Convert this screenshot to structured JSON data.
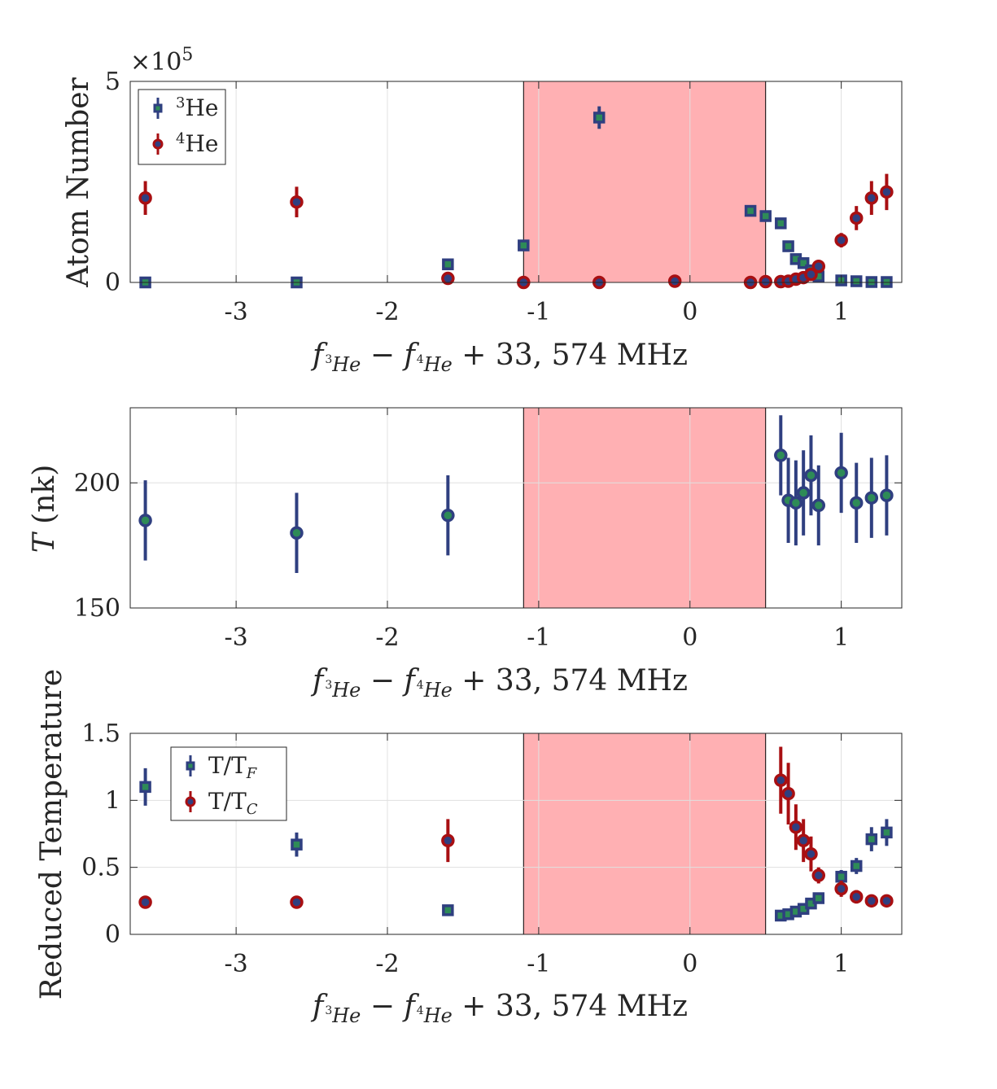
{
  "colors": {
    "he3": "#2f3f80",
    "he4": "#a80f12",
    "marker_center": "#2e8b57",
    "shade": "#ff9a9e",
    "axis": "#262626",
    "grid": "#e0e0e0"
  },
  "xlabel": {
    "f": "f",
    "sub1a": "3",
    "sub1b": "He",
    "minus": "−",
    "sub2a": "4",
    "sub2b": "He",
    "tail": "+ 33, 574 MHz"
  },
  "chart_data": [
    {
      "type": "scatter",
      "ylabel": "Atom Number",
      "y_multiplier": "×10",
      "y_multiplier_exp": "5",
      "xlim": [
        -3.7,
        1.4
      ],
      "ylim": [
        0,
        5
      ],
      "xticks": [
        "-3",
        "-2",
        "-1",
        "0",
        "1"
      ],
      "yticks": [
        "0",
        "5"
      ],
      "grid": true,
      "shaded_region": [
        -1.1,
        0.5
      ],
      "legend": {
        "position": "top-left",
        "entries": [
          {
            "sup": "3",
            "text": "He",
            "marker": "square",
            "color": "he3"
          },
          {
            "sup": "4",
            "text": "He",
            "marker": "circle",
            "color": "he4"
          }
        ]
      },
      "series": [
        {
          "name": "3He",
          "marker": "square",
          "color": "he3",
          "x": [
            -3.6,
            -2.6,
            -1.6,
            -1.1,
            -0.6,
            0.4,
            0.5,
            0.6,
            0.65,
            0.7,
            0.75,
            0.8,
            0.85,
            1.0,
            1.1,
            1.2,
            1.3
          ],
          "y": [
            0.0,
            0.0,
            0.45,
            0.92,
            4.1,
            1.78,
            1.65,
            1.47,
            0.9,
            0.58,
            0.48,
            0.3,
            0.15,
            0.05,
            0.03,
            0.01,
            0.01
          ],
          "err": [
            0,
            0,
            0,
            0,
            0.28,
            0.12,
            0,
            0,
            0,
            0,
            0,
            0,
            0,
            0,
            0,
            0,
            0
          ]
        },
        {
          "name": "4He",
          "marker": "circle",
          "color": "he4",
          "x": [
            -3.6,
            -2.6,
            -1.6,
            -1.1,
            -0.6,
            -0.1,
            0.4,
            0.5,
            0.6,
            0.65,
            0.7,
            0.75,
            0.8,
            0.85,
            1.0,
            1.1,
            1.2,
            1.3
          ],
          "y": [
            2.1,
            2.0,
            0.1,
            0.0,
            0.0,
            0.03,
            0.0,
            0.02,
            0.02,
            0.03,
            0.08,
            0.12,
            0.2,
            0.4,
            1.05,
            1.6,
            2.1,
            2.25
          ],
          "err": [
            0.42,
            0.38,
            0,
            0,
            0,
            0,
            0,
            0,
            0,
            0,
            0,
            0,
            0,
            0,
            0.18,
            0.3,
            0.42,
            0.45
          ]
        }
      ]
    },
    {
      "type": "scatter",
      "ylabel": "T (nk)",
      "xlim": [
        -3.7,
        1.4
      ],
      "ylim": [
        150,
        230
      ],
      "xticks": [
        "-3",
        "-2",
        "-1",
        "0",
        "1"
      ],
      "yticks": [
        "150",
        "200"
      ],
      "grid": true,
      "shaded_region": [
        -1.1,
        0.5
      ],
      "series": [
        {
          "name": "T",
          "marker": "circle",
          "color": "he3",
          "x": [
            -3.6,
            -2.6,
            -1.6,
            0.6,
            0.65,
            0.7,
            0.75,
            0.8,
            0.85,
            1.0,
            1.1,
            1.2,
            1.3
          ],
          "y": [
            185,
            180,
            187,
            211,
            193,
            192,
            196,
            203,
            191,
            204,
            192,
            194,
            195
          ],
          "err": [
            16,
            16,
            16,
            16,
            17,
            17,
            17,
            16,
            16,
            16,
            16,
            16,
            16
          ]
        }
      ]
    },
    {
      "type": "scatter",
      "ylabel": "Reduced Temperature",
      "xlim": [
        -3.7,
        1.4
      ],
      "ylim": [
        0,
        1.5
      ],
      "xticks": [
        "-3",
        "-2",
        "-1",
        "0",
        "1"
      ],
      "yticks": [
        "0",
        "0.5",
        "1",
        "1.5"
      ],
      "grid": true,
      "shaded_region": [
        -1.1,
        0.5
      ],
      "legend": {
        "position": "top-left",
        "entries": [
          {
            "text": "T/T",
            "sub": "F",
            "marker": "square",
            "color": "he3"
          },
          {
            "text": "T/T",
            "sub": "C",
            "marker": "circle",
            "color": "he4"
          }
        ]
      },
      "series": [
        {
          "name": "T/TF",
          "marker": "square",
          "color": "he3",
          "x": [
            -3.6,
            -2.6,
            -1.6,
            0.6,
            0.65,
            0.7,
            0.75,
            0.8,
            0.85,
            1.0,
            1.1,
            1.2,
            1.3
          ],
          "y": [
            1.1,
            0.67,
            0.18,
            0.14,
            0.15,
            0.17,
            0.19,
            0.23,
            0.27,
            0.43,
            0.51,
            0.71,
            0.76
          ],
          "err": [
            0.14,
            0.09,
            0,
            0,
            0,
            0,
            0,
            0,
            0,
            0.05,
            0.06,
            0.09,
            0.1
          ]
        },
        {
          "name": "T/TC",
          "marker": "circle",
          "color": "he4",
          "x": [
            -3.6,
            -2.6,
            -1.6,
            0.6,
            0.65,
            0.7,
            0.75,
            0.8,
            0.85,
            1.0,
            1.1,
            1.2,
            1.3
          ],
          "y": [
            0.24,
            0.24,
            0.7,
            1.15,
            1.05,
            0.8,
            0.7,
            0.6,
            0.44,
            0.34,
            0.28,
            0.25,
            0.25
          ],
          "err": [
            0,
            0,
            0.16,
            0.25,
            0.23,
            0.17,
            0.16,
            0.13,
            0.06,
            0.06,
            0.05,
            0,
            0
          ]
        }
      ]
    }
  ]
}
